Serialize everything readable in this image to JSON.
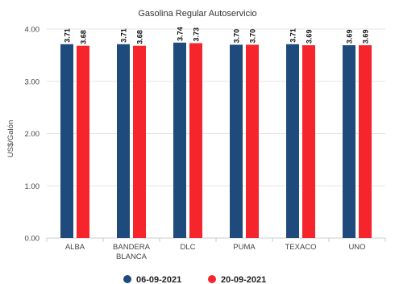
{
  "chart_data": {
    "type": "bar",
    "title": "Gasolina Regular Autoservicio",
    "ylabel": "US$/Galón",
    "xlabel": "",
    "categories": [
      [
        "ALBA"
      ],
      [
        "BANDERA",
        "BLANCA"
      ],
      [
        "DLC"
      ],
      [
        "PUMA"
      ],
      [
        "TEXACO"
      ],
      [
        "UNO"
      ]
    ],
    "series": [
      {
        "name": "06-09-2021",
        "color": "#1f4a7c",
        "values": [
          3.71,
          3.71,
          3.74,
          3.7,
          3.71,
          3.69
        ]
      },
      {
        "name": "20-09-2021",
        "color": "#f5252b",
        "values": [
          3.68,
          3.68,
          3.73,
          3.7,
          3.69,
          3.69
        ]
      }
    ],
    "ylim": [
      0,
      4
    ],
    "yticks": [
      0,
      1,
      2,
      3,
      4
    ],
    "ytick_labels": [
      "0.00",
      "1.00",
      "2.00",
      "3.00",
      "4.00"
    ],
    "grid": true,
    "legend": "bottom-center",
    "data_label_decimals": 2
  }
}
